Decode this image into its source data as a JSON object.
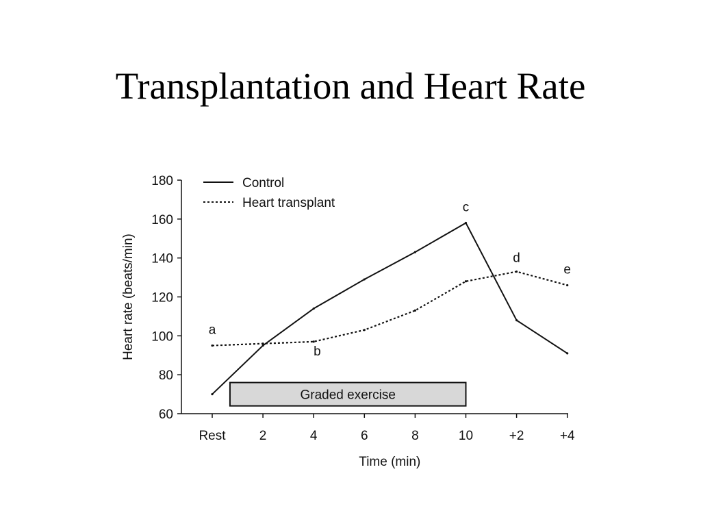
{
  "slide": {
    "title": "Transplantation and Heart Rate"
  },
  "chart_data": {
    "type": "line",
    "title": "",
    "xlabel": "Time (min)",
    "ylabel": "Heart rate (beats/min)",
    "categories": [
      "Rest",
      "2",
      "4",
      "6",
      "8",
      "10",
      "+2",
      "+4"
    ],
    "yticks": [
      60,
      80,
      100,
      120,
      140,
      160,
      180
    ],
    "ylim": [
      60,
      180
    ],
    "legend_position": "top-left",
    "series": [
      {
        "name": "Control",
        "style": "solid",
        "points": [
          {
            "x": 0,
            "y": 70
          },
          {
            "x": 1,
            "y": 95
          },
          {
            "x": 2,
            "y": 114
          },
          {
            "x": 3,
            "y": 129
          },
          {
            "x": 4,
            "y": 143
          },
          {
            "x": 5,
            "y": 158
          },
          {
            "x": 6,
            "y": 108
          },
          {
            "x": 7,
            "y": 91
          }
        ]
      },
      {
        "name": "Heart transplant",
        "style": "dotted",
        "points": [
          {
            "x": 0,
            "y": 95
          },
          {
            "x": 1,
            "y": 96
          },
          {
            "x": 2,
            "y": 97
          },
          {
            "x": 3,
            "y": 103
          },
          {
            "x": 4,
            "y": 113
          },
          {
            "x": 5,
            "y": 128
          },
          {
            "x": 6,
            "y": 133
          },
          {
            "x": 7,
            "y": 126
          }
        ]
      }
    ],
    "annotations": [
      {
        "text": "a",
        "x": 0,
        "y": 101
      },
      {
        "text": "b",
        "x": 2.07,
        "y": 90
      },
      {
        "text": "c",
        "x": 5,
        "y": 164
      },
      {
        "text": "d",
        "x": 6,
        "y": 138
      },
      {
        "text": "e",
        "x": 7,
        "y": 132
      }
    ],
    "shaded_band": {
      "label": "Graded exercise",
      "x_start": 0.35,
      "x_end": 5,
      "y_bottom": 64,
      "y_top": 76,
      "fill": "#d8d8d8"
    }
  }
}
